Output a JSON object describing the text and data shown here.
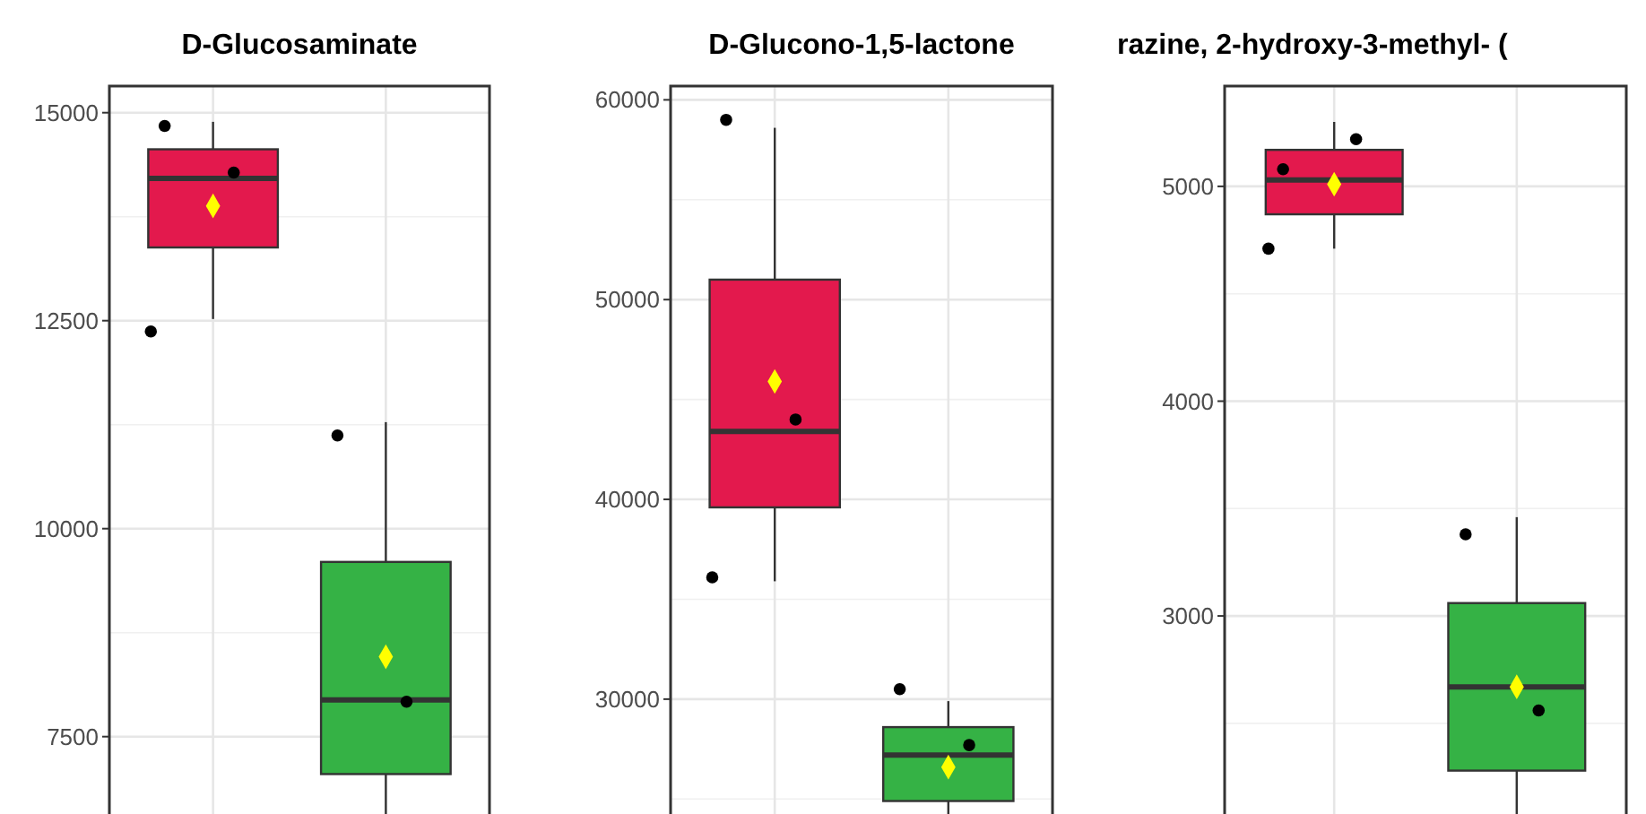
{
  "chart_data": [
    {
      "type": "box",
      "title": "D-Glucosaminate",
      "categories": [
        null,
        null
      ],
      "colors": [
        "#e3194d",
        "#35b245"
      ],
      "ylim": [
        6570,
        15320
      ],
      "yticks": [
        7500,
        10000,
        12500,
        15000
      ],
      "grid": true,
      "tick_labels": "y",
      "boxes": [
        {
          "low": 12520,
          "q1": 13380,
          "median": 14210,
          "q3": 14560,
          "high": 14890,
          "mean": 13880
        },
        {
          "low": 6570,
          "q1": 7050,
          "median": 7940,
          "q3": 9600,
          "high": 11280,
          "mean": 8460
        }
      ],
      "series": [
        {
          "type": "scatter",
          "color": "#000000",
          "marker": "circle",
          "values": [
            14840,
            11120
          ]
        },
        {
          "type": "scatter",
          "color": "#000000",
          "marker": "circle",
          "values": [
            14280,
            7920
          ]
        },
        {
          "type": "scatter",
          "color": "#000000",
          "marker": "circle",
          "values": [
            12370,
            null
          ]
        }
      ]
    },
    {
      "type": "box",
      "title": "D-Glucono-1,5-lactone",
      "categories": [
        null,
        null
      ],
      "colors": [
        "#e3194d",
        "#35b245"
      ],
      "ylim": [
        24250,
        60690
      ],
      "yticks": [
        30000,
        40000,
        50000,
        60000
      ],
      "grid": true,
      "tick_labels": "y",
      "boxes": [
        {
          "low": 35900,
          "q1": 39600,
          "median": 43400,
          "q3": 51000,
          "high": 58600,
          "mean": 45900
        },
        {
          "low": 24250,
          "q1": 24900,
          "median": 27200,
          "q3": 28600,
          "high": 29900,
          "mean": 26600
        }
      ],
      "series": [
        {
          "type": "scatter",
          "color": "#000000",
          "marker": "circle",
          "values": [
            59000,
            30500
          ]
        },
        {
          "type": "scatter",
          "color": "#000000",
          "marker": "circle",
          "values": [
            44000,
            27700
          ]
        },
        {
          "type": "scatter",
          "color": "#000000",
          "marker": "circle",
          "values": [
            36100,
            null
          ]
        }
      ]
    },
    {
      "type": "box",
      "title": "razine, 2-hydroxy-3-methyl- (",
      "categories": [
        null,
        null
      ],
      "colors": [
        "#e3194d",
        "#35b245"
      ],
      "ylim": [
        2078,
        5467
      ],
      "yticks": [
        3000,
        4000,
        5000
      ],
      "grid": true,
      "tick_labels": "y",
      "boxes": [
        {
          "low": 4710,
          "q1": 4870,
          "median": 5030,
          "q3": 5170,
          "high": 5300,
          "mean": 5010
        },
        {
          "low": 2078,
          "q1": 2280,
          "median": 2670,
          "q3": 3060,
          "high": 3460,
          "mean": 2670
        }
      ],
      "series": [
        {
          "type": "scatter",
          "color": "#000000",
          "marker": "circle",
          "values": [
            5080,
            3380
          ]
        },
        {
          "type": "scatter",
          "color": "#000000",
          "marker": "circle",
          "values": [
            5220,
            2560
          ]
        },
        {
          "type": "scatter",
          "color": "#000000",
          "marker": "circle",
          "values": [
            4710,
            null
          ]
        }
      ]
    }
  ]
}
